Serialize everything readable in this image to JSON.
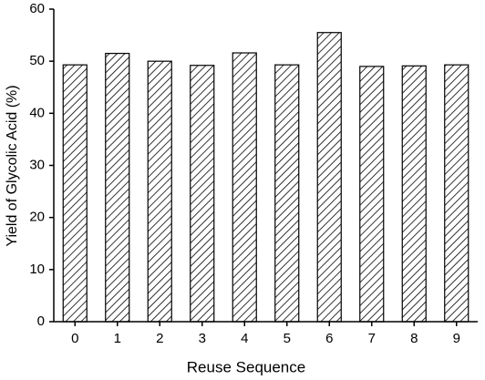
{
  "chart_data": {
    "type": "bar",
    "xlabel": "Reuse Sequence",
    "ylabel": "Yield of Glycolic Acid (%)",
    "categories": [
      "0",
      "1",
      "2",
      "3",
      "4",
      "5",
      "6",
      "7",
      "8",
      "9"
    ],
    "values": [
      49.3,
      51.5,
      50.0,
      49.2,
      51.6,
      49.3,
      55.5,
      49.0,
      49.1,
      49.3
    ],
    "color": "#000000",
    "ylim": [
      0,
      60
    ],
    "yticks": [
      0,
      10,
      20,
      30,
      40,
      50,
      60
    ],
    "grid": false
  }
}
